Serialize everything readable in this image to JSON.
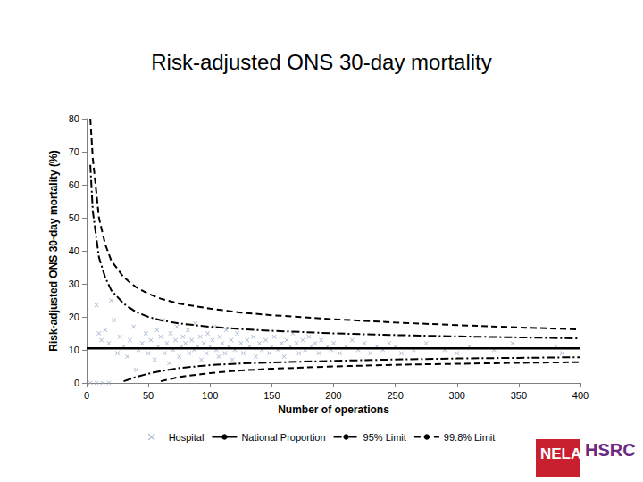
{
  "chart_data": {
    "type": "scatter",
    "title": "Risk-adjusted ONS 30-day mortality",
    "x_label": "Number of operations",
    "y_label": "Risk-adjusted ONS 30-day mortality (%)",
    "xlim": [
      0,
      400
    ],
    "xticks": [
      0,
      50,
      100,
      150,
      200,
      250,
      300,
      350,
      400
    ],
    "ylim": [
      0,
      80
    ],
    "yticks": [
      0,
      10,
      20,
      30,
      40,
      50,
      60,
      70,
      80
    ],
    "grid": false,
    "legend": "bottom",
    "annotations": [
      "NELA",
      "HSRC"
    ],
    "series": [
      {
        "name": "Hospital",
        "type": "scatter",
        "marker": "x",
        "color": "#8da2c3",
        "points": [
          [
            3,
            0
          ],
          [
            8,
            0
          ],
          [
            13,
            0
          ],
          [
            18,
            0
          ],
          [
            8,
            23.5
          ],
          [
            10,
            15
          ],
          [
            12,
            13
          ],
          [
            15,
            16
          ],
          [
            18,
            12
          ],
          [
            20,
            25
          ],
          [
            22,
            19
          ],
          [
            25,
            9
          ],
          [
            27,
            14
          ],
          [
            30,
            11
          ],
          [
            33,
            8
          ],
          [
            35,
            13
          ],
          [
            38,
            17
          ],
          [
            40,
            4
          ],
          [
            42,
            10
          ],
          [
            45,
            12
          ],
          [
            48,
            15
          ],
          [
            50,
            9
          ],
          [
            52,
            13
          ],
          [
            55,
            7
          ],
          [
            57,
            16
          ],
          [
            58,
            11
          ],
          [
            60,
            14
          ],
          [
            62,
            19
          ],
          [
            63,
            9
          ],
          [
            65,
            12
          ],
          [
            67,
            6
          ],
          [
            68,
            15
          ],
          [
            70,
            10
          ],
          [
            72,
            13
          ],
          [
            73,
            17
          ],
          [
            75,
            8
          ],
          [
            77,
            11
          ],
          [
            78,
            14
          ],
          [
            80,
            12
          ],
          [
            82,
            16
          ],
          [
            83,
            9
          ],
          [
            85,
            13
          ],
          [
            87,
            10
          ],
          [
            88,
            18
          ],
          [
            90,
            11
          ],
          [
            92,
            14
          ],
          [
            93,
            7
          ],
          [
            95,
            12
          ],
          [
            97,
            9
          ],
          [
            98,
            15
          ],
          [
            100,
            11
          ],
          [
            102,
            13
          ],
          [
            103,
            17
          ],
          [
            105,
            10
          ],
          [
            107,
            8
          ],
          [
            108,
            14
          ],
          [
            110,
            12
          ],
          [
            112,
            9
          ],
          [
            113,
            16
          ],
          [
            115,
            11
          ],
          [
            117,
            13
          ],
          [
            118,
            7
          ],
          [
            120,
            10
          ],
          [
            122,
            15
          ],
          [
            125,
            12
          ],
          [
            127,
            9
          ],
          [
            130,
            13
          ],
          [
            132,
            11
          ],
          [
            135,
            14
          ],
          [
            137,
            8
          ],
          [
            140,
            12
          ],
          [
            142,
            10
          ],
          [
            145,
            13
          ],
          [
            148,
            9
          ],
          [
            150,
            11
          ],
          [
            152,
            14
          ],
          [
            155,
            10
          ],
          [
            158,
            12
          ],
          [
            160,
            8
          ],
          [
            162,
            13
          ],
          [
            165,
            11
          ],
          [
            167,
            15
          ],
          [
            170,
            12
          ],
          [
            172,
            9
          ],
          [
            175,
            13
          ],
          [
            177,
            10
          ],
          [
            180,
            14
          ],
          [
            182,
            11
          ],
          [
            185,
            12
          ],
          [
            188,
            9
          ],
          [
            190,
            13
          ],
          [
            195,
            11
          ],
          [
            198,
            10
          ],
          [
            200,
            12
          ],
          [
            205,
            9
          ],
          [
            210,
            11
          ],
          [
            215,
            13
          ],
          [
            220,
            10
          ],
          [
            225,
            12
          ],
          [
            230,
            9
          ],
          [
            235,
            11
          ],
          [
            240,
            10
          ],
          [
            245,
            12
          ],
          [
            250,
            11
          ],
          [
            255,
            9
          ],
          [
            265,
            10
          ],
          [
            275,
            12
          ],
          [
            290,
            10
          ],
          [
            300,
            9
          ],
          [
            310,
            11
          ],
          [
            330,
            10
          ],
          [
            345,
            12
          ],
          [
            380,
            11
          ],
          [
            385,
            9
          ]
        ]
      },
      {
        "name": "National Proportion",
        "type": "line",
        "line_style": "solid",
        "color": "#000000",
        "x": [
          0,
          400
        ],
        "values": [
          10.5,
          10.5
        ]
      },
      {
        "name": "95% Limit",
        "type": "line",
        "line_style": "dashdot",
        "color": "#000000",
        "x": [
          3,
          5,
          10,
          15,
          20,
          30,
          40,
          50,
          60,
          75,
          100,
          125,
          150,
          200,
          250,
          300,
          350,
          400
        ],
        "upper": [
          66,
          52,
          38,
          32,
          28,
          24,
          21.5,
          20,
          19,
          18,
          17,
          16.3,
          15.8,
          15.0,
          14.5,
          14.1,
          13.8,
          13.5
        ],
        "lower": [
          null,
          null,
          null,
          null,
          null,
          0.5,
          1.8,
          2.8,
          3.6,
          4.5,
          5.4,
          5.9,
          6.2,
          6.7,
          7.1,
          7.4,
          7.6,
          7.8
        ]
      },
      {
        "name": "99.8% Limit",
        "type": "line",
        "line_style": "dashed",
        "color": "#000000",
        "x": [
          3,
          5,
          10,
          15,
          20,
          30,
          40,
          50,
          60,
          75,
          100,
          125,
          150,
          200,
          250,
          300,
          350,
          400
        ],
        "upper": [
          80,
          68,
          50,
          42,
          37,
          32,
          29,
          27,
          25.5,
          24,
          22.5,
          21.3,
          20.5,
          19.3,
          18.3,
          17.5,
          16.8,
          16.2
        ],
        "lower": [
          null,
          null,
          null,
          null,
          null,
          null,
          null,
          null,
          0.5,
          1.8,
          3.0,
          3.8,
          4.3,
          5.0,
          5.5,
          5.8,
          6.1,
          6.3
        ]
      }
    ]
  }
}
